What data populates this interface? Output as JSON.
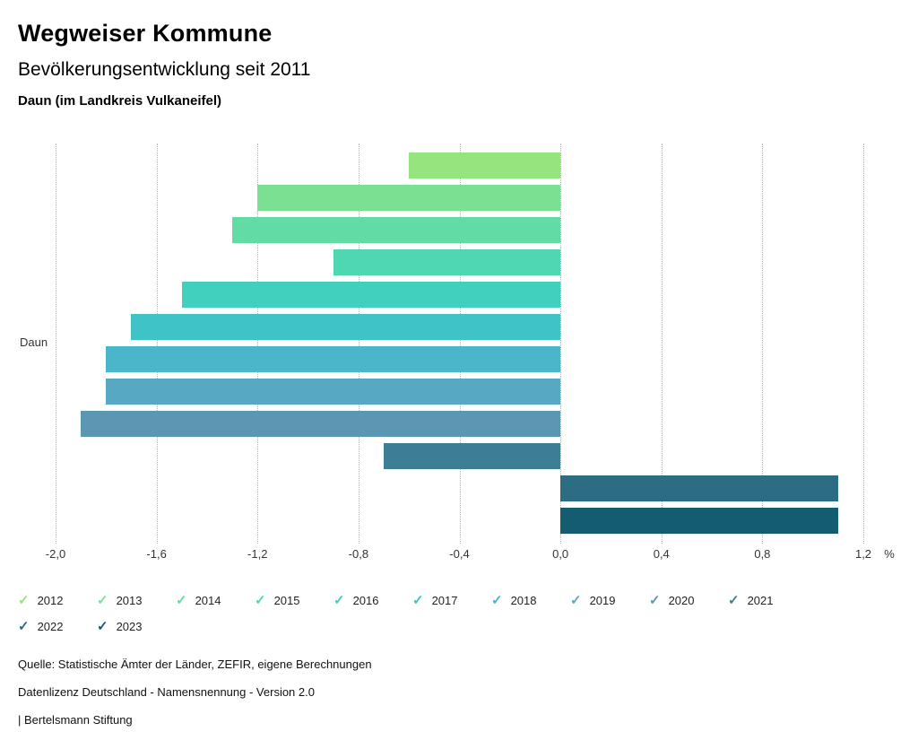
{
  "chart_data": {
    "type": "bar",
    "orientation": "horizontal",
    "title": "Wegweiser Kommune",
    "subtitle": "Bevölkerungsentwicklung seit 2011",
    "region_label": "Daun (im Landkreis Vulkaneifel)",
    "y_category": "Daun",
    "xlim": [
      -2.0,
      1.2
    ],
    "x_unit": "%",
    "grid": "dotted-vertical",
    "legend_position": "bottom",
    "x_ticks": [
      {
        "value": -2.0,
        "label": "-2,0"
      },
      {
        "value": -1.6,
        "label": "-1,6"
      },
      {
        "value": -1.2,
        "label": "-1,2"
      },
      {
        "value": -0.8,
        "label": "-0,8"
      },
      {
        "value": -0.4,
        "label": "-0,4"
      },
      {
        "value": 0.0,
        "label": "0,0"
      },
      {
        "value": 0.4,
        "label": "0,4"
      },
      {
        "value": 0.8,
        "label": "0,8"
      },
      {
        "value": 1.2,
        "label": "1,2"
      }
    ],
    "series": [
      {
        "name": "2012",
        "value": -0.6,
        "color": "#95e47d"
      },
      {
        "name": "2013",
        "value": -1.2,
        "color": "#7be092"
      },
      {
        "name": "2014",
        "value": -1.3,
        "color": "#62dca4"
      },
      {
        "name": "2015",
        "value": -0.9,
        "color": "#4ed7b2"
      },
      {
        "name": "2016",
        "value": -1.5,
        "color": "#41cfbe"
      },
      {
        "name": "2017",
        "value": -1.7,
        "color": "#3fc3c6"
      },
      {
        "name": "2018",
        "value": -1.8,
        "color": "#4bb6c9"
      },
      {
        "name": "2019",
        "value": -1.8,
        "color": "#57a8c3"
      },
      {
        "name": "2020",
        "value": -1.9,
        "color": "#5b97b2"
      },
      {
        "name": "2021",
        "value": -0.7,
        "color": "#3d7e95"
      },
      {
        "name": "2022",
        "value": 1.1,
        "color": "#2c6d84"
      },
      {
        "name": "2023",
        "value": 1.1,
        "color": "#145c70"
      }
    ]
  },
  "footer": {
    "source": "Quelle: Statistische Ämter der Länder, ZEFIR, eigene Berechnungen",
    "license": "Datenlizenz Deutschland - Namensnennung - Version 2.0",
    "attribution": "| Bertelsmann Stiftung"
  }
}
